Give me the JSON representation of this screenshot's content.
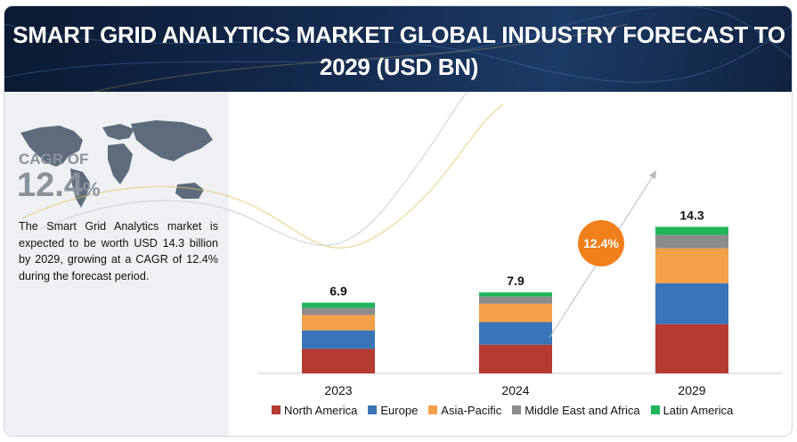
{
  "chart_data": {
    "type": "bar",
    "stacked": true,
    "title": "SMART GRID ANALYTICS MARKET GLOBAL INDUSTRY FORECAST TO 2029 (USD BN)",
    "categories": [
      "2023",
      "2024",
      "2029"
    ],
    "totals": [
      "6.9",
      "7.9",
      "14.3"
    ],
    "series": [
      {
        "name": "North America",
        "color": "#b53a30",
        "values": [
          2.4,
          2.8,
          4.8
        ]
      },
      {
        "name": "Europe",
        "color": "#3a74b8",
        "values": [
          1.8,
          2.2,
          4.0
        ]
      },
      {
        "name": "Asia-Pacific",
        "color": "#f4a04a",
        "values": [
          1.5,
          1.8,
          3.4
        ]
      },
      {
        "name": "Middle East and Africa",
        "color": "#8c8c8c",
        "values": [
          0.7,
          0.7,
          1.3
        ]
      },
      {
        "name": "Latin America",
        "color": "#20b55a",
        "values": [
          0.5,
          0.4,
          0.8
        ]
      }
    ],
    "annotation": "12.4%",
    "legend_position": "bottom",
    "grid": false
  },
  "sidebar": {
    "cagr_label": "CAGR OF",
    "cagr_value": "12.4",
    "cagr_unit": "%",
    "description": "The Smart Grid Analytics market is expected to be worth USD 14.3 billion by 2029, growing at a CAGR of 12.4% during the forecast period."
  },
  "icons": [
    "world-map-icon"
  ]
}
